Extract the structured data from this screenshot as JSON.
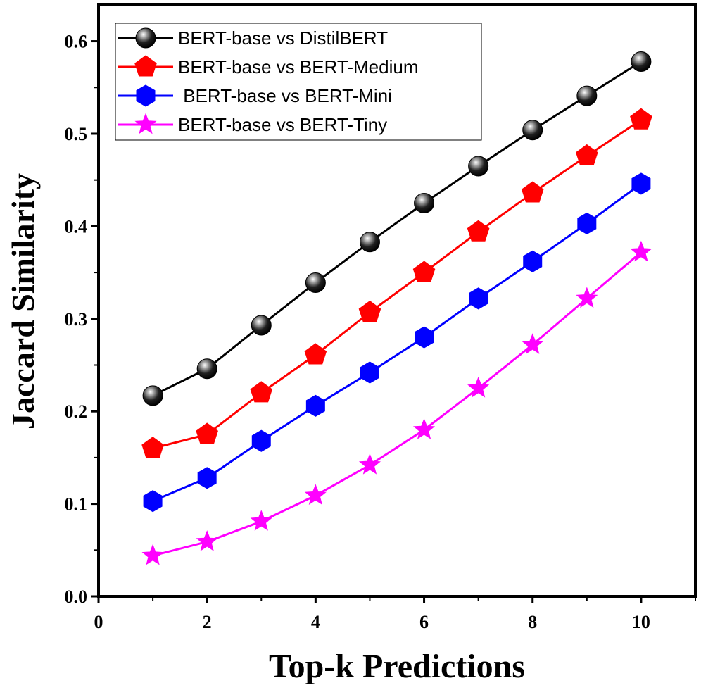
{
  "chart_data": {
    "type": "line",
    "title": "",
    "xlabel": "Top-k Predictions",
    "ylabel": "Jaccard Similarity",
    "xlim": [
      0,
      11
    ],
    "ylim": [
      0.0,
      0.64
    ],
    "x_ticks": [
      0,
      2,
      4,
      6,
      8,
      10
    ],
    "x_tick_labels": [
      "0",
      "2",
      "4",
      "6",
      "8",
      "10"
    ],
    "y_ticks": [
      0.0,
      0.1,
      0.2,
      0.3,
      0.4,
      0.5,
      0.6
    ],
    "y_tick_labels": [
      "0.0",
      "0.1",
      "0.2",
      "0.3",
      "0.4",
      "0.5",
      "0.6"
    ],
    "grid": false,
    "legend_position": "top-left",
    "x": [
      1,
      2,
      3,
      4,
      5,
      6,
      7,
      8,
      9,
      10
    ],
    "series": [
      {
        "name": "BERT-base vs DistilBERT",
        "legend_label": "BERT-base vs DistilBERT",
        "color": "#000000",
        "marker": "sphere",
        "values": [
          0.217,
          0.246,
          0.293,
          0.339,
          0.383,
          0.425,
          0.465,
          0.504,
          0.541,
          0.578
        ]
      },
      {
        "name": "BERT-base vs BERT-Medium",
        "legend_label": "BERT-base vs BERT-Medium",
        "color": "#ff0000",
        "marker": "pentagon",
        "values": [
          0.16,
          0.175,
          0.22,
          0.261,
          0.307,
          0.35,
          0.394,
          0.436,
          0.476,
          0.515
        ]
      },
      {
        "name": "BERT-base vs BERT-Mini",
        "legend_label": " BERT-base vs BERT-Mini",
        "color": "#0000ff",
        "marker": "hexagon",
        "values": [
          0.103,
          0.128,
          0.168,
          0.206,
          0.242,
          0.28,
          0.322,
          0.362,
          0.403,
          0.446
        ]
      },
      {
        "name": "BERT-base vs BERT-Tiny",
        "legend_label": "BERT-base vs BERT-Tiny",
        "color": "#ff00ff",
        "marker": "star",
        "values": [
          0.044,
          0.059,
          0.081,
          0.109,
          0.142,
          0.18,
          0.225,
          0.272,
          0.322,
          0.372
        ]
      }
    ]
  }
}
